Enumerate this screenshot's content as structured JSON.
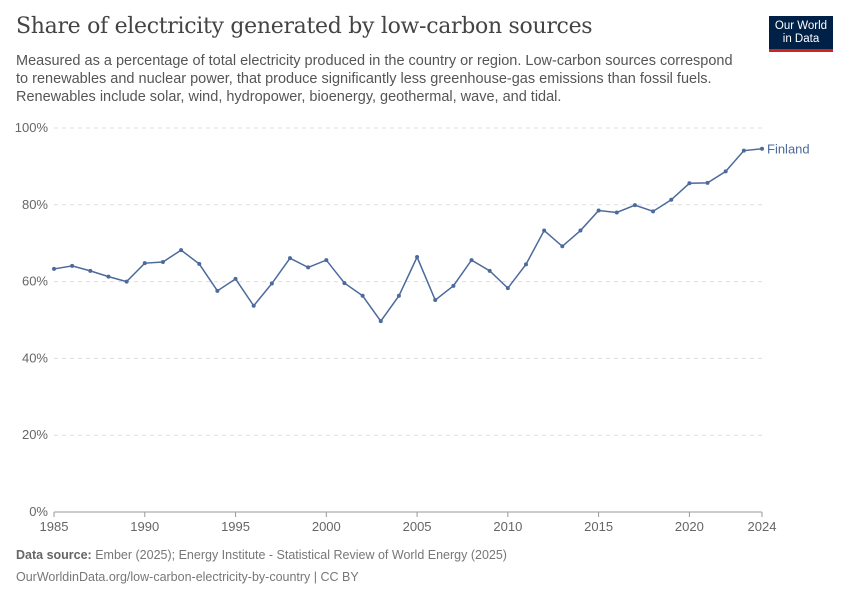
{
  "header": {
    "title": "Share of electricity generated by low-carbon sources",
    "subtitle": "Measured as a percentage of total electricity produced in the country or region. Low-carbon sources correspond to renewables and nuclear power, that produce significantly less greenhouse-gas emissions than fossil fuels. Renewables include solar, wind, hydropower, bioenergy, geothermal, wave, and tidal.",
    "logo": "Our World in Data"
  },
  "footer": {
    "source_label": "Data source:",
    "source": "Ember (2025); Energy Institute - Statistical Review of World Energy (2025)",
    "url": "OurWorldinData.org/low-carbon-electricity-by-country | CC BY"
  },
  "chart_data": {
    "type": "line",
    "title": "Share of electricity generated by low-carbon sources",
    "xlabel": "",
    "ylabel": "",
    "xlim": [
      1985,
      2024
    ],
    "ylim": [
      0,
      100
    ],
    "grid": "horizontal dashed",
    "yticks": [
      "0%",
      "20%",
      "40%",
      "60%",
      "80%",
      "100%"
    ],
    "xticks": [
      "1985",
      "1990",
      "1995",
      "2000",
      "2005",
      "2010",
      "2015",
      "2020",
      "2024"
    ],
    "x": [
      1985,
      1986,
      1987,
      1988,
      1989,
      1990,
      1991,
      1992,
      1993,
      1994,
      1995,
      1996,
      1997,
      1998,
      1999,
      2000,
      2001,
      2002,
      2003,
      2004,
      2005,
      2006,
      2007,
      2008,
      2009,
      2010,
      2011,
      2012,
      2013,
      2014,
      2015,
      2016,
      2017,
      2018,
      2019,
      2020,
      2021,
      2022,
      2023,
      2024
    ],
    "series": [
      {
        "name": "Finland",
        "color": "#4c6a9c",
        "values": [
          63.3,
          64.1,
          62.8,
          61.3,
          60.0,
          64.8,
          65.1,
          68.2,
          64.6,
          57.6,
          60.7,
          53.7,
          59.5,
          66.1,
          63.7,
          65.6,
          59.6,
          56.3,
          49.7,
          56.3,
          66.4,
          55.2,
          58.9,
          65.6,
          62.8,
          58.3,
          64.5,
          73.3,
          69.2,
          73.3,
          78.5,
          78.0,
          79.9,
          78.3,
          81.3,
          85.6,
          85.7,
          88.7,
          94.1,
          94.6
        ]
      }
    ]
  }
}
